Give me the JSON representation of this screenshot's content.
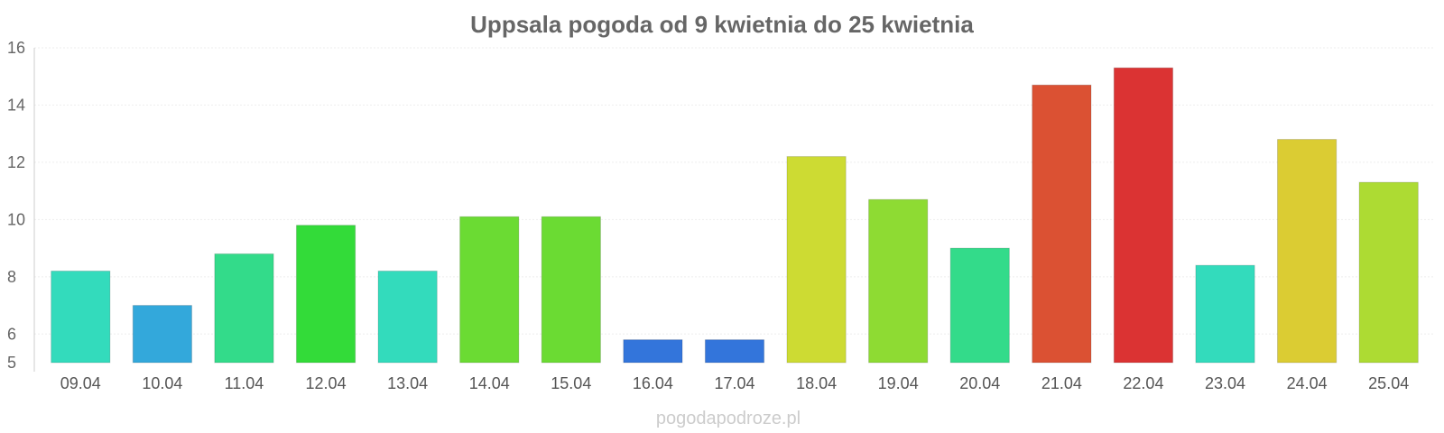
{
  "chart_data": {
    "type": "bar",
    "title": "Uppsala pogoda od 9 kwietnia do 25 kwietnia",
    "xlabel": "",
    "ylabel": "",
    "ylim": [
      5,
      16
    ],
    "yticks": [
      5,
      6,
      8,
      10,
      12,
      14,
      16
    ],
    "grid": true,
    "categories": [
      "09.04",
      "10.04",
      "11.04",
      "12.04",
      "13.04",
      "14.04",
      "15.04",
      "16.04",
      "17.04",
      "18.04",
      "19.04",
      "20.04",
      "21.04",
      "22.04",
      "23.04",
      "24.04",
      "25.04"
    ],
    "values": [
      8.2,
      7.0,
      8.8,
      9.8,
      8.2,
      10.1,
      10.1,
      5.8,
      5.8,
      12.2,
      10.7,
      9.0,
      14.7,
      15.3,
      8.4,
      12.8,
      11.3
    ],
    "colors": [
      "#33dbbc",
      "#33a8db",
      "#33db8a",
      "#33db39",
      "#33dbbc",
      "#6bdb33",
      "#6bdb33",
      "#3375db",
      "#3375db",
      "#cddb33",
      "#8edb33",
      "#33db8a",
      "#db5133",
      "#db3333",
      "#33dbbc",
      "#dbcc33",
      "#addb33"
    ]
  },
  "footer": {
    "credit": "pogodapodroze.pl"
  }
}
